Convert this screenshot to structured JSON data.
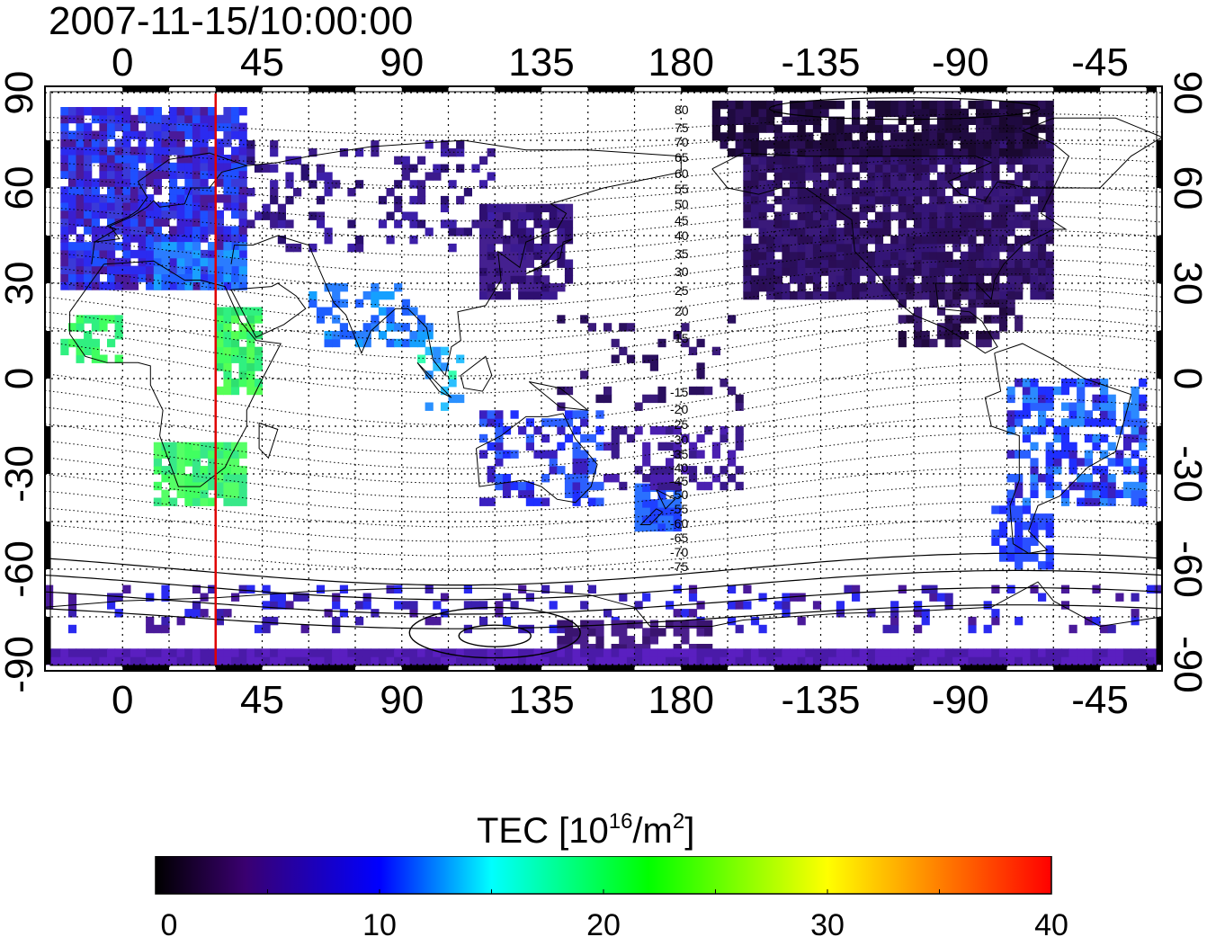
{
  "title": "2007-11-15/10:00:00",
  "map": {
    "projection": "equirectangular",
    "lon_tick_labels_top": [
      "0",
      "45",
      "90",
      "135",
      "180",
      "-135",
      "-90",
      "-45"
    ],
    "lon_tick_labels_bottom": [
      "0",
      "45",
      "90",
      "135",
      "180",
      "-135",
      "-90",
      "-45"
    ],
    "lat_tick_labels": [
      "90",
      "60",
      "30",
      "0",
      "-30",
      "-60",
      "-90"
    ],
    "lon_values": [
      0,
      45,
      90,
      135,
      180,
      225,
      270,
      315
    ],
    "lat_values": [
      90,
      60,
      30,
      0,
      -30,
      -60,
      -90
    ],
    "lon_range": [
      -25,
      335
    ],
    "lat_range": [
      -92,
      92
    ],
    "grid": "dotted",
    "magnetic_latitude_labels": [
      "80",
      "75",
      "70",
      "65",
      "60",
      "55",
      "50",
      "45",
      "40",
      "35",
      "30",
      "25",
      "20",
      "15",
      "-15",
      "-20",
      "-25",
      "-30",
      "-35",
      "-40",
      "-45",
      "-50",
      "-55",
      "-60",
      "-65",
      "-70",
      "-75"
    ],
    "terminator_longitude": 30,
    "terminator_color": "#e00000"
  },
  "colorbar": {
    "label_main": "TEC  [10",
    "label_sup": "16",
    "label_tail": "/m",
    "label_sup2": "2",
    "label_end": "]",
    "ticks": [
      "0",
      "10",
      "20",
      "30",
      "40"
    ],
    "tick_values": [
      0,
      10,
      20,
      30,
      40
    ],
    "range": [
      0,
      40
    ],
    "colors": [
      "#000000",
      "#3a0070",
      "#0000ff",
      "#00ffff",
      "#00ff00",
      "#ffff00",
      "#ff0000"
    ]
  }
}
